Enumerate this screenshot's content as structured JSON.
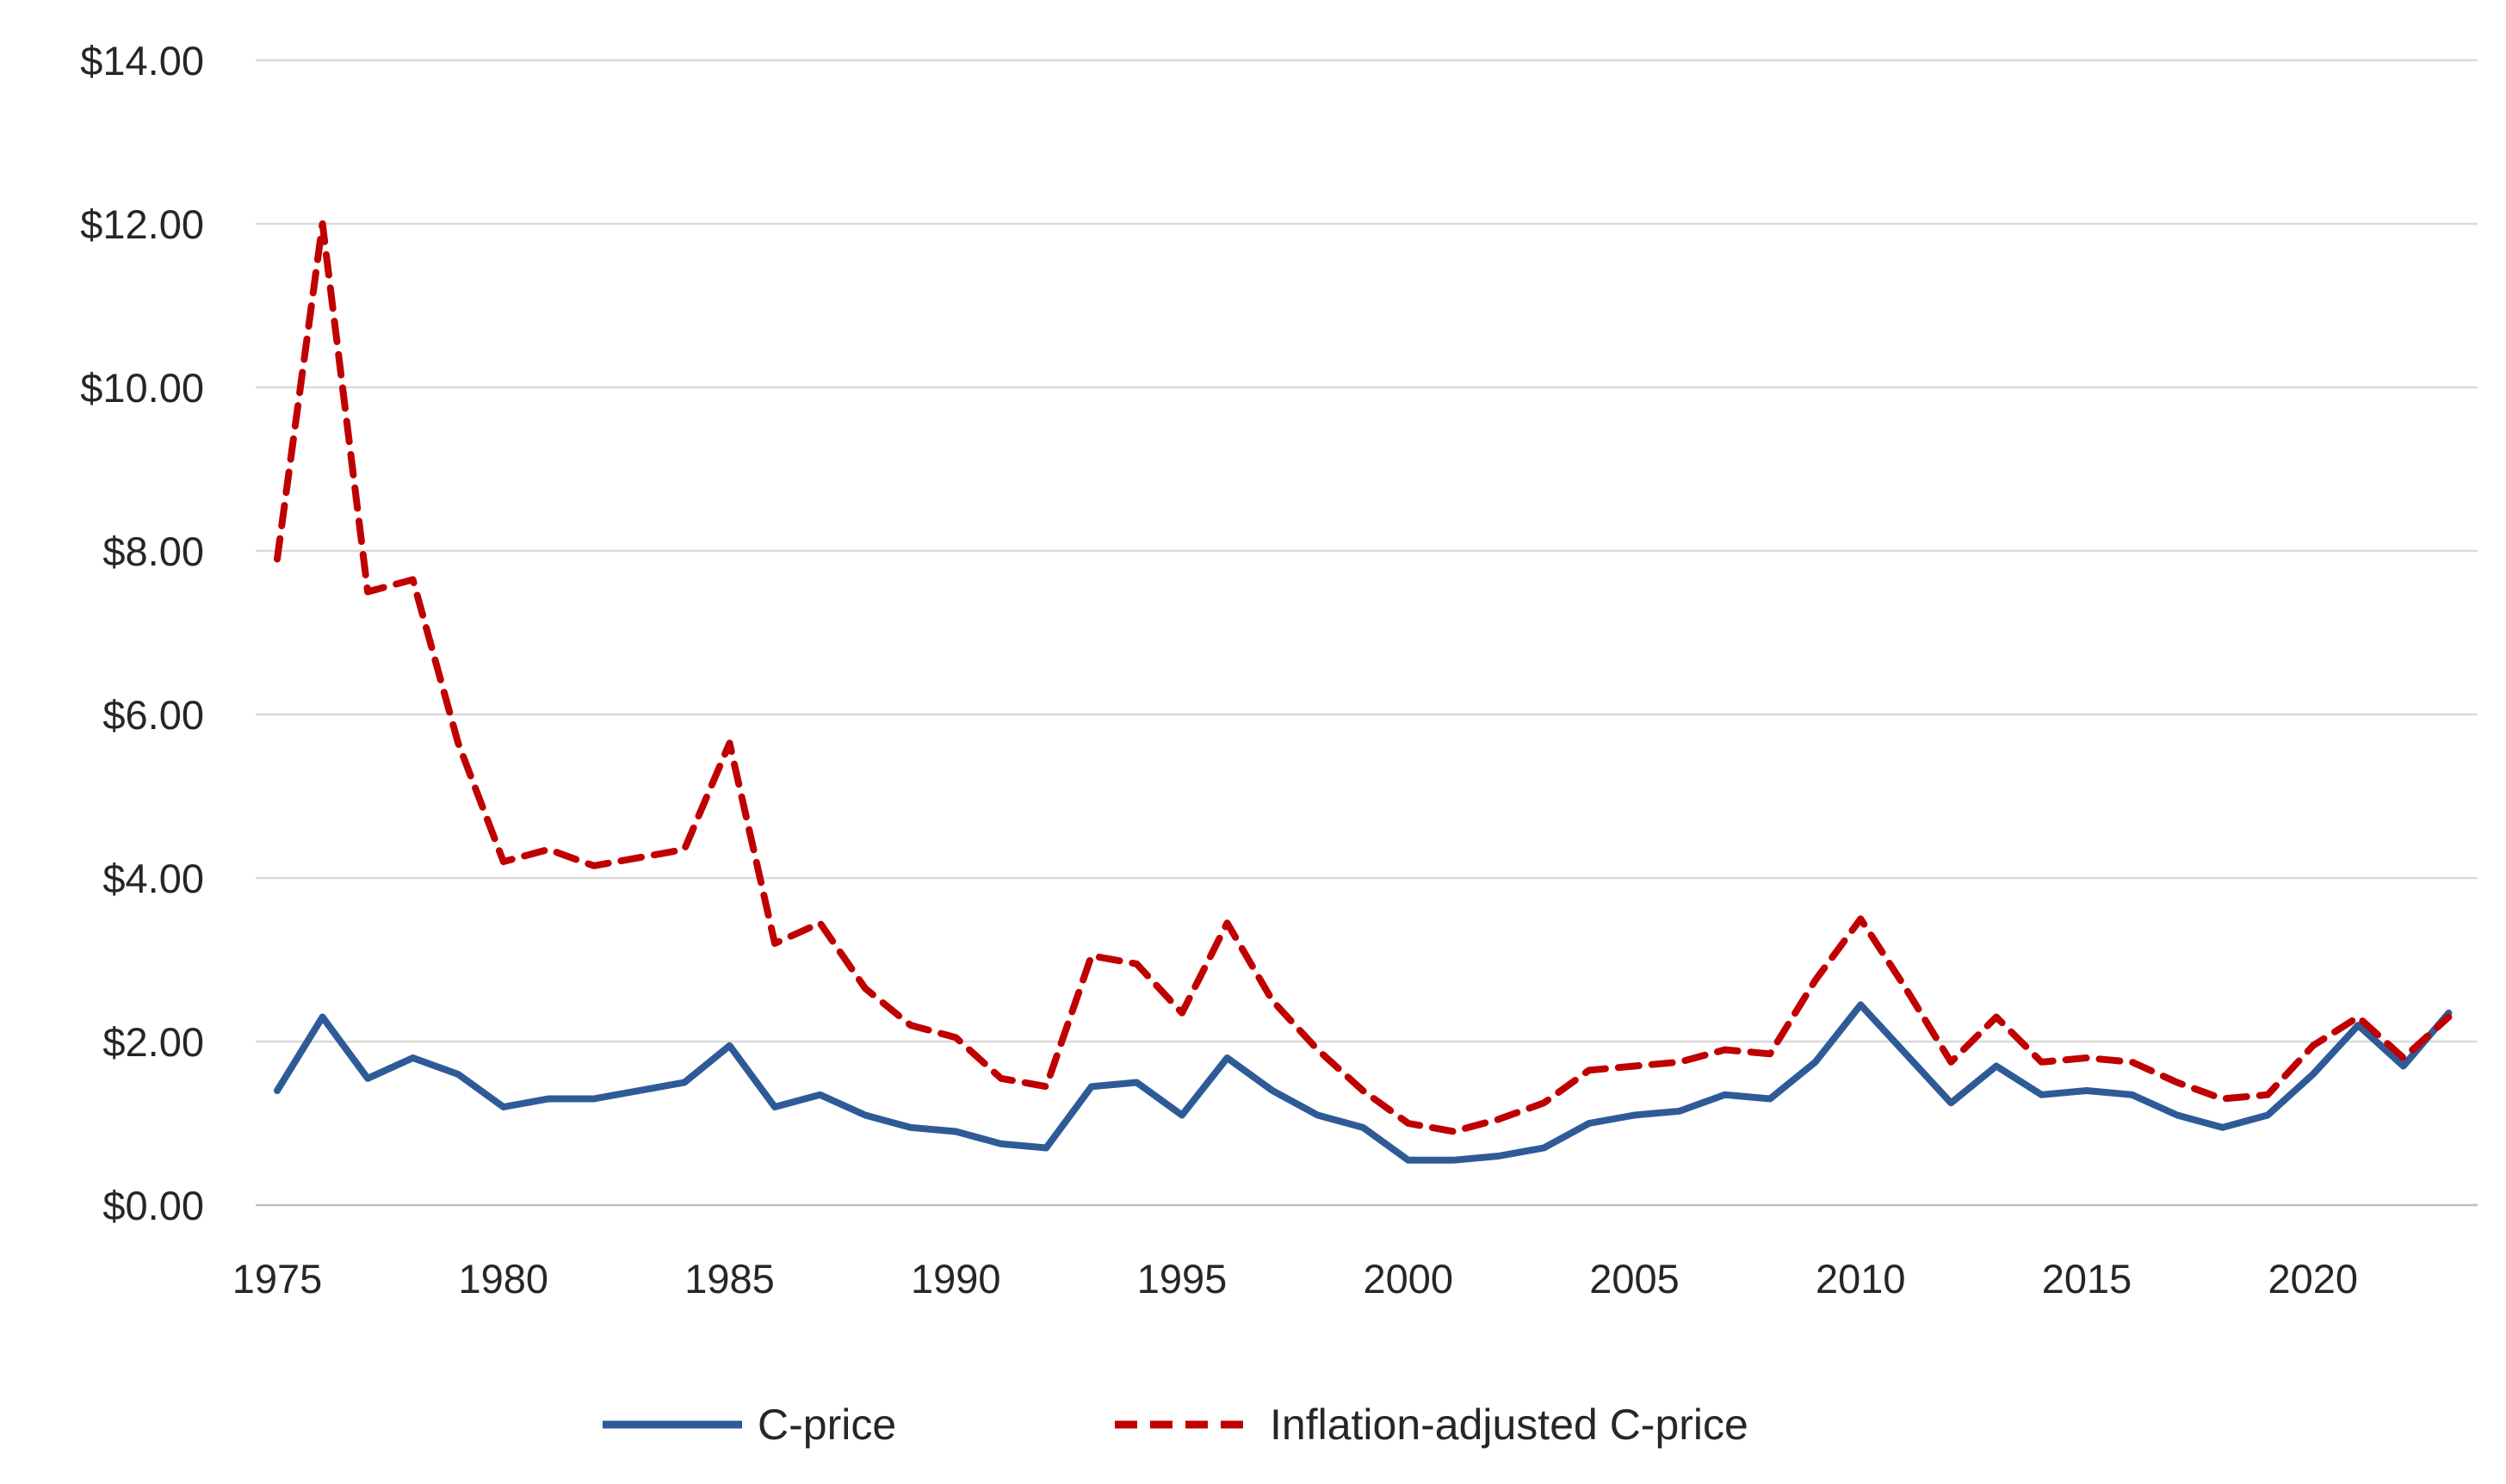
{
  "chart_data": {
    "type": "line",
    "title": "",
    "xlabel": "",
    "ylabel": "",
    "grid": true,
    "legend_position": "bottom",
    "ylim": [
      0,
      14
    ],
    "y_tick_values": [
      0,
      2,
      4,
      6,
      8,
      10,
      12,
      14
    ],
    "y_tick_labels": [
      "$0.00",
      "$2.00",
      "$4.00",
      "$6.00",
      "$8.00",
      "$10.00",
      "$12.00",
      "$14.00"
    ],
    "x_tick_labels": [
      "1975",
      "1980",
      "1985",
      "1990",
      "1995",
      "2000",
      "2005",
      "2010",
      "2015",
      "2020"
    ],
    "x_tick_years": [
      1975,
      1980,
      1985,
      1990,
      1995,
      2000,
      2005,
      2010,
      2015,
      2020
    ],
    "x_years": [
      1975,
      1976,
      1977,
      1978,
      1979,
      1980,
      1981,
      1982,
      1983,
      1984,
      1985,
      1986,
      1987,
      1988,
      1989,
      1990,
      1991,
      1992,
      1993,
      1994,
      1995,
      1996,
      1997,
      1998,
      1999,
      2000,
      2001,
      2002,
      2003,
      2004,
      2005,
      2006,
      2007,
      2008,
      2009,
      2010,
      2011,
      2012,
      2013,
      2014,
      2015,
      2016,
      2017,
      2018,
      2019,
      2020,
      2021,
      2022,
      2023
    ],
    "series": [
      {
        "name": "C-price",
        "color": "#2E5B97",
        "line_style": "solid",
        "values": [
          1.4,
          2.3,
          1.55,
          1.8,
          1.6,
          1.2,
          1.3,
          1.3,
          1.4,
          1.5,
          1.95,
          1.2,
          1.35,
          1.1,
          0.95,
          0.9,
          0.75,
          0.7,
          1.45,
          1.5,
          1.1,
          1.8,
          1.4,
          1.1,
          0.95,
          0.55,
          0.55,
          0.6,
          0.7,
          1.0,
          1.1,
          1.15,
          1.35,
          1.3,
          1.75,
          2.45,
          1.85,
          1.25,
          1.7,
          1.35,
          1.4,
          1.35,
          1.1,
          0.95,
          1.1,
          1.6,
          2.2,
          1.7,
          2.35
        ]
      },
      {
        "name": "Inflation-adjusted C-price",
        "color": "#C00000",
        "line_style": "dashed",
        "values": [
          7.9,
          12.0,
          7.5,
          7.65,
          5.65,
          4.2,
          4.35,
          4.15,
          4.25,
          4.35,
          5.65,
          3.2,
          3.45,
          2.65,
          2.2,
          2.05,
          1.55,
          1.45,
          3.05,
          2.95,
          2.35,
          3.45,
          2.5,
          1.9,
          1.4,
          1.0,
          0.9,
          1.05,
          1.25,
          1.65,
          1.7,
          1.75,
          1.9,
          1.85,
          2.75,
          3.5,
          2.65,
          1.75,
          2.3,
          1.75,
          1.8,
          1.75,
          1.5,
          1.3,
          1.35,
          1.95,
          2.3,
          1.8,
          2.3
        ]
      }
    ],
    "colors": {
      "gridline": "#D9D9D9",
      "axis_line": "#BFBFBF",
      "text": "#262626"
    }
  }
}
